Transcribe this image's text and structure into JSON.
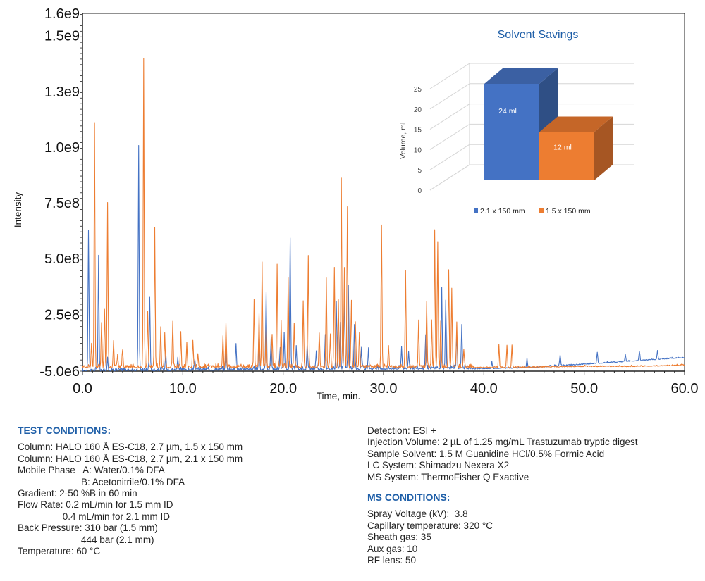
{
  "colors": {
    "blue": "#4472c4",
    "orange": "#ed7d31",
    "title_blue": "#1f5fa8"
  },
  "chart_data": [
    {
      "type": "line",
      "xlabel": "Time, min.",
      "ylabel": "Intensity",
      "xlim": [
        0,
        60
      ],
      "ylim": [
        -5000000,
        1600000000
      ],
      "x_ticks": [
        "0.0",
        "10.0",
        "20.0",
        "30.0",
        "40.0",
        "50.0",
        "60.0"
      ],
      "x_tick_values": [
        0,
        10,
        20,
        30,
        40,
        50,
        60
      ],
      "y_ticks": [
        "-5.0e6",
        "2.5e8",
        "5.0e8",
        "7.5e8",
        "1.0e9",
        "1.3e9",
        "1.5e9",
        "1.6e9"
      ],
      "y_tick_values": [
        -5000000,
        250000000,
        500000000,
        750000000,
        1000000000,
        1250000000,
        1500000000,
        1600000000
      ],
      "grid": false,
      "series": [
        {
          "name": "2.1 x 150 mm",
          "color": "#4472c4",
          "baseline": [
            [
              0,
              -5000000
            ],
            [
              40,
              5000000
            ],
            [
              45,
              10000000
            ],
            [
              50,
              25000000
            ],
            [
              55,
              40000000
            ],
            [
              60,
              55000000
            ]
          ],
          "peaks": [
            [
              0.6,
              630000000
            ],
            [
              1.6,
              510000000
            ],
            [
              2.5,
              60000000
            ],
            [
              5.6,
              1010000000
            ],
            [
              6.7,
              330000000
            ],
            [
              8.3,
              80000000
            ],
            [
              9.5,
              60000000
            ],
            [
              11.2,
              50000000
            ],
            [
              14.3,
              100000000
            ],
            [
              15.3,
              120000000
            ],
            [
              17.6,
              200000000
            ],
            [
              18.3,
              350000000
            ],
            [
              18.8,
              150000000
            ],
            [
              19.7,
              100000000
            ],
            [
              20.1,
              150000000
            ],
            [
              20.7,
              590000000
            ],
            [
              21.3,
              100000000
            ],
            [
              22.4,
              120000000
            ],
            [
              23.3,
              80000000
            ],
            [
              24.2,
              150000000
            ],
            [
              25.3,
              300000000
            ],
            [
              25.7,
              200000000
            ],
            [
              26.1,
              360000000
            ],
            [
              26.5,
              380000000
            ],
            [
              27.1,
              200000000
            ],
            [
              27.8,
              100000000
            ],
            [
              28.5,
              80000000
            ],
            [
              31.8,
              100000000
            ],
            [
              32.5,
              80000000
            ],
            [
              34.2,
              150000000
            ],
            [
              35.8,
              350000000
            ],
            [
              36.2,
              300000000
            ],
            [
              37.3,
              150000000
            ],
            [
              37.8,
              200000000
            ],
            [
              40.8,
              30000000
            ],
            [
              44.3,
              40000000
            ],
            [
              47.6,
              50000000
            ],
            [
              51.3,
              50000000
            ],
            [
              54.1,
              30000000
            ],
            [
              55.5,
              40000000
            ],
            [
              57.3,
              40000000
            ]
          ]
        },
        {
          "name": "1.5 x 150 mm",
          "color": "#ed7d31",
          "baseline": [
            [
              0,
              10000000
            ],
            [
              40,
              10000000
            ],
            [
              45,
              12000000
            ],
            [
              50,
              15000000
            ],
            [
              55,
              15000000
            ],
            [
              60,
              20000000
            ]
          ],
          "peaks": [
            [
              0.9,
              100000000
            ],
            [
              1.2,
              1100000000
            ],
            [
              1.9,
              200000000
            ],
            [
              2.2,
              260000000
            ],
            [
              2.5,
              740000000
            ],
            [
              3.1,
              110000000
            ],
            [
              3.5,
              60000000
            ],
            [
              4.0,
              80000000
            ],
            [
              6.1,
              1380000000
            ],
            [
              6.5,
              250000000
            ],
            [
              7.2,
              620000000
            ],
            [
              7.8,
              180000000
            ],
            [
              8.2,
              150000000
            ],
            [
              9.0,
              200000000
            ],
            [
              9.8,
              150000000
            ],
            [
              10.4,
              100000000
            ],
            [
              11.0,
              120000000
            ],
            [
              11.5,
              60000000
            ],
            [
              14.0,
              140000000
            ],
            [
              14.3,
              200000000
            ],
            [
              17.1,
              300000000
            ],
            [
              17.6,
              240000000
            ],
            [
              17.9,
              470000000
            ],
            [
              18.3,
              180000000
            ],
            [
              18.9,
              150000000
            ],
            [
              19.4,
              460000000
            ],
            [
              19.8,
              200000000
            ],
            [
              20.5,
              400000000
            ],
            [
              21.1,
              200000000
            ],
            [
              22.0,
              300000000
            ],
            [
              22.5,
              500000000
            ],
            [
              23.6,
              150000000
            ],
            [
              24.3,
              400000000
            ],
            [
              24.7,
              150000000
            ],
            [
              25.1,
              440000000
            ],
            [
              25.5,
              300000000
            ],
            [
              25.8,
              840000000
            ],
            [
              26.1,
              450000000
            ],
            [
              26.4,
              720000000
            ],
            [
              26.8,
              300000000
            ],
            [
              27.2,
              200000000
            ],
            [
              27.6,
              150000000
            ],
            [
              29.8,
              640000000
            ],
            [
              30.5,
              100000000
            ],
            [
              32.2,
              430000000
            ],
            [
              33.5,
              200000000
            ],
            [
              34.3,
              290000000
            ],
            [
              34.8,
              200000000
            ],
            [
              35.1,
              610000000
            ],
            [
              35.4,
              560000000
            ],
            [
              35.7,
              200000000
            ],
            [
              36.5,
              440000000
            ],
            [
              36.8,
              350000000
            ],
            [
              37.3,
              200000000
            ],
            [
              38.0,
              80000000
            ],
            [
              41.5,
              100000000
            ],
            [
              42.3,
              100000000
            ],
            [
              42.8,
              100000000
            ]
          ]
        }
      ]
    },
    {
      "type": "bar",
      "title": "Solvent Savings",
      "ylabel": "Volume, mL",
      "ylim": [
        0,
        25
      ],
      "y_ticks": [
        "0",
        "5",
        "10",
        "15",
        "20",
        "25"
      ],
      "y_tick_values": [
        0,
        5,
        10,
        15,
        20,
        25
      ],
      "categories": [
        "2.1 x 150 mm",
        "1.5 x 150 mm"
      ],
      "values": [
        24,
        12
      ],
      "data_labels": [
        "24 ml",
        "12 ml"
      ],
      "colors": [
        "#4472c4",
        "#ed7d31"
      ],
      "legend": [
        "2.1 x 150 mm",
        "1.5 x 150 mm"
      ],
      "legend_position": "bottom",
      "style": "3d"
    }
  ],
  "test_conditions": {
    "header": "TEST CONDITIONS:",
    "lines": [
      "Column: HALO 160 Å ES-C18, 2.7 µm, 1.5 x 150 mm",
      "Column: HALO 160 Å ES-C18, 2.7 µm, 2.1 x 150 mm",
      "Mobile Phase   A: Water/0.1% DFA",
      "                        B: Acetonitrile/0.1% DFA",
      "Gradient: 2-50 %B in 60 min",
      "Flow Rate: 0.2 mL/min for 1.5 mm ID",
      "                 0.4 mL/min for 2.1 mm ID",
      "Back Pressure: 310 bar (1.5 mm)",
      "                        444 bar (2.1 mm)",
      "Temperature: 60 °C"
    ]
  },
  "detection": {
    "lines": [
      "Detection: ESI +",
      "Injection Volume: 2 µL of 1.25 mg/mL Trastuzumab tryptic digest",
      "Sample Solvent: 1.5 M Guanidine HCl/0.5% Formic Acid",
      "LC System: Shimadzu Nexera X2",
      "MS System: ThermoFisher Q Exactive"
    ]
  },
  "ms_conditions": {
    "header": "MS CONDITIONS:",
    "lines": [
      "Spray Voltage (kV):  3.8",
      "Capillary temperature: 320 °C",
      "Sheath gas: 35",
      "Aux gas: 10",
      "RF lens: 50"
    ]
  }
}
